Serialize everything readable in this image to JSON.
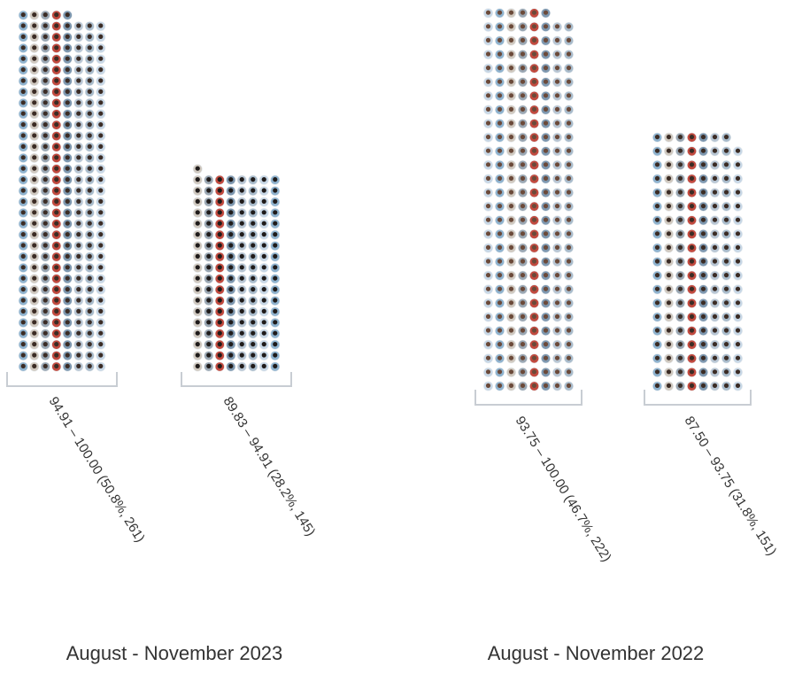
{
  "chart_data": [
    {
      "type": "unit",
      "title": "August - November 2023",
      "categories": [
        "94.91 – 100.00 (50.8%, 261)",
        "89.83 – 94.91 (28.2%, 145)"
      ],
      "values": [
        261,
        145
      ]
    },
    {
      "type": "unit",
      "title": "August - November 2022",
      "categories": [
        "93.75 – 100.00 (46.7%, 222)",
        "87.50 – 93.75 (31.8%, 151)"
      ],
      "values": [
        222,
        151
      ]
    }
  ]
}
